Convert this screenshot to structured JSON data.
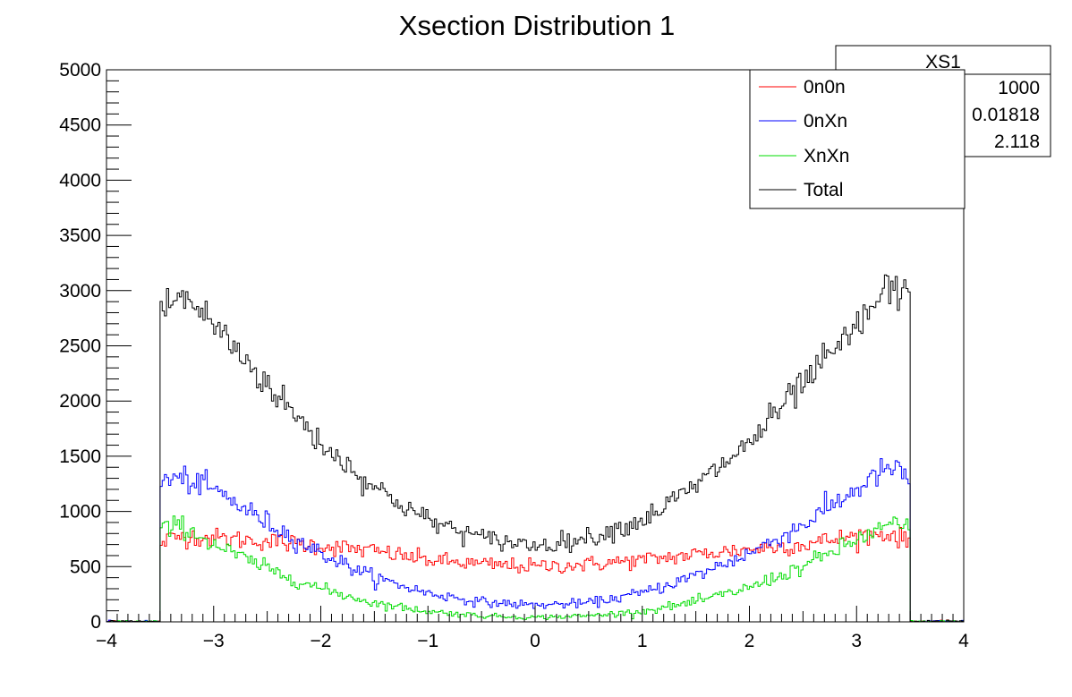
{
  "chart_data": {
    "type": "line",
    "title": "Xsection Distribution 1",
    "xlabel": "",
    "ylabel": "",
    "xlim": [
      -4,
      4
    ],
    "ylim": [
      0,
      5000
    ],
    "x_ticks": [
      -4,
      -3,
      -2,
      -1,
      0,
      1,
      2,
      3,
      4
    ],
    "x_tick_labels": [
      "−4",
      "−3",
      "−2",
      "−1",
      "0",
      "1",
      "2",
      "3",
      "4"
    ],
    "y_ticks": [
      0,
      500,
      1000,
      1500,
      2000,
      2500,
      3000,
      3500,
      4000,
      4500,
      5000
    ],
    "y_tick_labels": [
      "0",
      "500",
      "1000",
      "1500",
      "2000",
      "2500",
      "3000",
      "3500",
      "4000",
      "4500",
      "5000"
    ],
    "grid": false,
    "legend_position": "top-right",
    "binning": {
      "nbins": 400,
      "range": [
        -4,
        4
      ],
      "acceptance": [
        -3.5,
        3.5
      ]
    },
    "series": [
      {
        "name": "0n0n",
        "color": "#ff0000",
        "x": [
          -3.5,
          -3.3,
          -3.0,
          -2.5,
          -2.0,
          -1.5,
          -1.0,
          -0.5,
          0.0,
          0.5,
          1.0,
          1.5,
          2.0,
          2.5,
          3.0,
          3.3,
          3.5
        ],
        "values": [
          720,
          780,
          760,
          730,
          690,
          640,
          560,
          520,
          500,
          520,
          560,
          610,
          660,
          700,
          780,
          800,
          720
        ]
      },
      {
        "name": "0nXn",
        "color": "#0000ff",
        "x": [
          -3.5,
          -3.3,
          -3.0,
          -2.5,
          -2.0,
          -1.5,
          -1.0,
          -0.5,
          0.0,
          0.5,
          1.0,
          1.5,
          2.0,
          2.5,
          3.0,
          3.3,
          3.5
        ],
        "values": [
          1280,
          1300,
          1200,
          900,
          620,
          400,
          260,
          180,
          150,
          170,
          260,
          420,
          620,
          880,
          1200,
          1400,
          1300
        ]
      },
      {
        "name": "XnXn",
        "color": "#00dd00",
        "x": [
          -3.5,
          -3.3,
          -3.0,
          -2.5,
          -2.0,
          -1.5,
          -1.0,
          -0.5,
          0.0,
          0.5,
          1.0,
          1.5,
          2.0,
          2.5,
          3.0,
          3.3,
          3.5
        ],
        "values": [
          820,
          880,
          700,
          480,
          300,
          170,
          95,
          55,
          40,
          55,
          95,
          180,
          310,
          500,
          740,
          880,
          850
        ]
      },
      {
        "name": "Total",
        "color": "#000000",
        "x": [
          -3.5,
          -3.3,
          -3.0,
          -2.5,
          -2.0,
          -1.5,
          -1.0,
          -0.5,
          0.0,
          0.5,
          1.0,
          1.5,
          2.0,
          2.5,
          3.0,
          3.3,
          3.5
        ],
        "values": [
          2820,
          2960,
          2700,
          2150,
          1620,
          1220,
          920,
          760,
          690,
          760,
          920,
          1230,
          1620,
          2150,
          2650,
          3050,
          2900
        ]
      }
    ],
    "stats_box": {
      "title": "XS1",
      "entries": [
        "1000",
        "0.01818",
        "2.118"
      ]
    }
  }
}
